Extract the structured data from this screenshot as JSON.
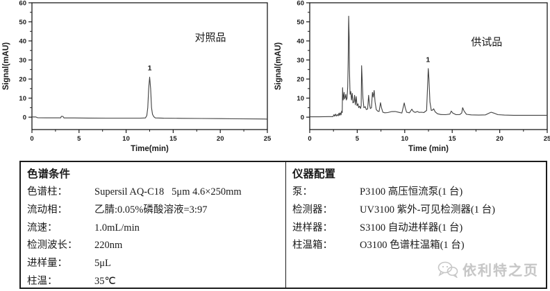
{
  "chart_data": [
    {
      "type": "line",
      "title": "对照品",
      "xlabel": "Time(min)",
      "ylabel": "Signal(mAU)",
      "xlim": [
        0,
        25
      ],
      "ylim": [
        -6.5,
        60
      ],
      "x_major_ticks": [
        0,
        5,
        10,
        15,
        20,
        25
      ],
      "y_major_ticks": [
        0,
        10,
        20,
        30,
        40,
        50,
        60
      ],
      "x_minor_step": 2.5,
      "y_minor_step": 5,
      "grid": false,
      "line_color": "#3f3f3f",
      "annotation": {
        "text": "对照品",
        "fx": 0.758,
        "fy": 0.3
      },
      "peak_labels": [
        {
          "text": "1",
          "x": 12.5,
          "y": 24.5
        }
      ],
      "points": [
        [
          0,
          0.1
        ],
        [
          0.4,
          0.1
        ],
        [
          0.6,
          -0.3
        ],
        [
          1.5,
          -0.35
        ],
        [
          2.5,
          -0.35
        ],
        [
          3.05,
          -0.35
        ],
        [
          3.12,
          0.45
        ],
        [
          3.3,
          0.4
        ],
        [
          3.4,
          -0.4
        ],
        [
          4.5,
          -0.4
        ],
        [
          6,
          -0.45
        ],
        [
          8,
          -0.5
        ],
        [
          10,
          -0.5
        ],
        [
          11.5,
          -0.5
        ],
        [
          12.05,
          -0.4
        ],
        [
          12.2,
          0.8
        ],
        [
          12.3,
          5
        ],
        [
          12.4,
          15
        ],
        [
          12.5,
          21
        ],
        [
          12.6,
          15
        ],
        [
          12.7,
          5
        ],
        [
          12.8,
          1.5
        ],
        [
          12.95,
          0.2
        ],
        [
          13.1,
          -0.4
        ],
        [
          14,
          -0.55
        ],
        [
          16,
          -0.6
        ],
        [
          18,
          -0.7
        ],
        [
          20,
          -0.75
        ],
        [
          22,
          -0.85
        ],
        [
          24,
          -0.95
        ],
        [
          25,
          -1.0
        ]
      ]
    },
    {
      "type": "line",
      "title": "供试品",
      "xlabel": "Time (min)",
      "ylabel": "Signal(mAU)",
      "xlim": [
        0,
        25
      ],
      "ylim": [
        -6.5,
        60
      ],
      "x_major_ticks": [
        0,
        5,
        10,
        15,
        20,
        25
      ],
      "y_major_ticks": [
        0,
        10,
        20,
        30,
        40,
        50,
        60
      ],
      "x_minor_step": 2.5,
      "y_minor_step": 5,
      "grid": false,
      "line_color": "#3f3f3f",
      "annotation": {
        "text": "供试品",
        "fx": 0.745,
        "fy": 0.335
      },
      "peak_labels": [
        {
          "text": "1",
          "x": 12.45,
          "y": 29
        }
      ],
      "points": [
        [
          0,
          0.2
        ],
        [
          1,
          0.2
        ],
        [
          2,
          0.3
        ],
        [
          2.45,
          0.3
        ],
        [
          2.55,
          1.3
        ],
        [
          2.62,
          0.5
        ],
        [
          2.72,
          1.6
        ],
        [
          2.8,
          0.6
        ],
        [
          2.9,
          1.4
        ],
        [
          3.0,
          0.7
        ],
        [
          3.08,
          2.1
        ],
        [
          3.15,
          0.9
        ],
        [
          3.22,
          2.3
        ],
        [
          3.3,
          1.2
        ],
        [
          3.36,
          3.2
        ],
        [
          3.42,
          2.4
        ],
        [
          3.46,
          15.5
        ],
        [
          3.52,
          9
        ],
        [
          3.57,
          11
        ],
        [
          3.62,
          13
        ],
        [
          3.67,
          9.5
        ],
        [
          3.74,
          10.5
        ],
        [
          3.8,
          12
        ],
        [
          3.86,
          9
        ],
        [
          3.93,
          10
        ],
        [
          4.0,
          16
        ],
        [
          4.05,
          30
        ],
        [
          4.1,
          53
        ],
        [
          4.15,
          42
        ],
        [
          4.18,
          25
        ],
        [
          4.25,
          12
        ],
        [
          4.32,
          13.5
        ],
        [
          4.4,
          9
        ],
        [
          4.48,
          12.5
        ],
        [
          4.55,
          7.5
        ],
        [
          4.65,
          8
        ],
        [
          4.72,
          11.5
        ],
        [
          4.8,
          6.5
        ],
        [
          4.9,
          10.8
        ],
        [
          4.98,
          6
        ],
        [
          5.08,
          7
        ],
        [
          5.15,
          5
        ],
        [
          5.25,
          5.8
        ],
        [
          5.35,
          4.6
        ],
        [
          5.42,
          6
        ],
        [
          5.46,
          27
        ],
        [
          5.52,
          20
        ],
        [
          5.6,
          10
        ],
        [
          5.7,
          5
        ],
        [
          5.85,
          5.5
        ],
        [
          5.95,
          4
        ],
        [
          6.1,
          4.3
        ],
        [
          6.2,
          11.5
        ],
        [
          6.28,
          7
        ],
        [
          6.38,
          4.5
        ],
        [
          6.5,
          5
        ],
        [
          6.6,
          13
        ],
        [
          6.68,
          10.5
        ],
        [
          6.78,
          14
        ],
        [
          6.88,
          8
        ],
        [
          7.0,
          4
        ],
        [
          7.15,
          3.2
        ],
        [
          7.3,
          3
        ],
        [
          7.45,
          7.6
        ],
        [
          7.55,
          5
        ],
        [
          7.7,
          2.6
        ],
        [
          7.9,
          2.3
        ],
        [
          8.2,
          2.4
        ],
        [
          8.6,
          2.9
        ],
        [
          9.0,
          3.0
        ],
        [
          9.4,
          2.5
        ],
        [
          9.7,
          2.2
        ],
        [
          9.95,
          7.5
        ],
        [
          10.05,
          5
        ],
        [
          10.2,
          2.6
        ],
        [
          10.5,
          2.3
        ],
        [
          10.75,
          4.2
        ],
        [
          10.9,
          3
        ],
        [
          11.1,
          2.5
        ],
        [
          11.35,
          3.0
        ],
        [
          11.5,
          2.5
        ],
        [
          11.8,
          2.6
        ],
        [
          12.0,
          2.4
        ],
        [
          12.3,
          3.5
        ],
        [
          12.42,
          18
        ],
        [
          12.48,
          25.5
        ],
        [
          12.55,
          20
        ],
        [
          12.65,
          8
        ],
        [
          12.8,
          3.5
        ],
        [
          12.95,
          3.8
        ],
        [
          13.05,
          4.4
        ],
        [
          13.2,
          2.8
        ],
        [
          13.45,
          1.8
        ],
        [
          13.8,
          1.4
        ],
        [
          14.3,
          1.3
        ],
        [
          14.75,
          1.6
        ],
        [
          14.9,
          3.2
        ],
        [
          15.05,
          2.2
        ],
        [
          15.4,
          1.3
        ],
        [
          15.8,
          1.4
        ],
        [
          16.0,
          2.2
        ],
        [
          16.1,
          5.0
        ],
        [
          16.25,
          3.2
        ],
        [
          16.5,
          1.5
        ],
        [
          17.0,
          1.2
        ],
        [
          17.8,
          1.1
        ],
        [
          18.5,
          1.2
        ],
        [
          18.9,
          2.2
        ],
        [
          19.1,
          2.6
        ],
        [
          19.4,
          2.1
        ],
        [
          19.8,
          1.3
        ],
        [
          20.5,
          1.1
        ],
        [
          21.5,
          1.0
        ],
        [
          22.5,
          1.0
        ],
        [
          23.5,
          1.0
        ],
        [
          25,
          1.0
        ]
      ]
    }
  ],
  "table": {
    "left": {
      "header": "色谱条件",
      "rows": [
        {
          "label": "色谱柱：",
          "value": "Supersil AQ-C18   5μm 4.6×250mm"
        },
        {
          "label": "流动相：",
          "value": "乙腈:0.05%磷酸溶液=3:97"
        },
        {
          "label": "流速：",
          "value": "1.0mL/min"
        },
        {
          "label": "检测波长：",
          "value": "220nm"
        },
        {
          "label": "进样量：",
          "value": "5μL"
        },
        {
          "label": "柱温：",
          "value": "35℃"
        }
      ]
    },
    "right": {
      "header": "仪器配置",
      "rows": [
        {
          "label": "泵：",
          "value": "P3100 高压恒流泵(1 台)"
        },
        {
          "label": "检测器：",
          "value": "UV3100 紫外-可见检测器(1 台)"
        },
        {
          "label": "进样器：",
          "value": "S3100 自动进样器(1 台)"
        },
        {
          "label": "柱温箱：",
          "value": "O3100 色谱柱温箱(1 台)"
        }
      ],
      "watermark": {
        "text": "依利特之页",
        "icon": "wechat-bubbles-icon",
        "color": "#c7c7c7"
      }
    }
  },
  "colors": {
    "axis": "#1a1a1a",
    "curve": "#3f3f3f",
    "table_border": "#1b1b1b",
    "watermark": "#c7c7c7"
  }
}
